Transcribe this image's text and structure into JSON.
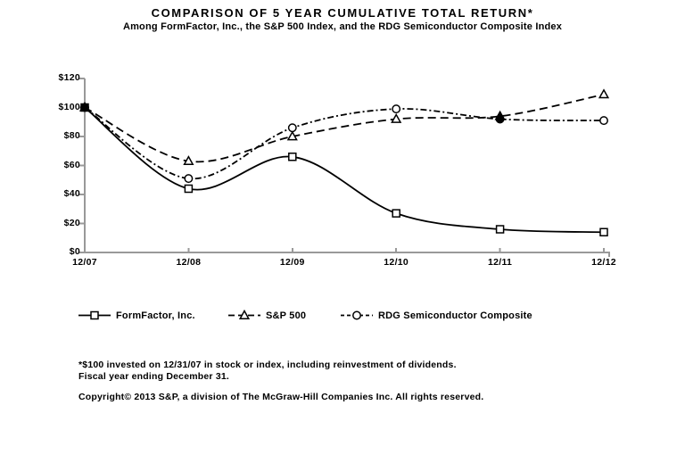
{
  "chart_data": {
    "type": "line",
    "title": "COMPARISON OF 5 YEAR CUMULATIVE TOTAL RETURN*",
    "subtitle": "Among FormFactor, Inc., the S&P 500 Index, and the RDG Semiconductor Composite Index",
    "x_labels": [
      "12/07",
      "12/08",
      "12/09",
      "12/10",
      "12/11",
      "12/12"
    ],
    "y_tick_labels": [
      "$120",
      "$100",
      "$80",
      "$60",
      "$40",
      "$20",
      "$0"
    ],
    "y_tick_values": [
      120,
      100,
      80,
      60,
      40,
      20,
      0
    ],
    "ylim": [
      0,
      120
    ],
    "grid": "off",
    "legend_position": "bottom",
    "axis_color": "#999999",
    "line_color": "#000000",
    "series": [
      {
        "name": "FormFactor, Inc.",
        "marker": "square",
        "line_style": "solid",
        "values": [
          100,
          44,
          66,
          27,
          16,
          14
        ]
      },
      {
        "name": "S&P 500",
        "marker": "triangle",
        "line_style": "dashed",
        "values": [
          100,
          63,
          80,
          92,
          94,
          109
        ]
      },
      {
        "name": "RDG Semiconductor Composite",
        "marker": "circle",
        "line_style": "dash-dot",
        "values": [
          100,
          51,
          86,
          99,
          92,
          91
        ]
      }
    ]
  },
  "footnotes": {
    "invested": "*$100 invested on 12/31/07 in stock or index, including reinvestment of dividends.",
    "fiscal": "Fiscal year ending December 31.",
    "copyright": "Copyright© 2013 S&P, a division of The McGraw-Hill Companies Inc. All rights reserved."
  }
}
